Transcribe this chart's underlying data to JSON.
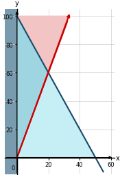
{
  "xlim_data": [
    -8,
    62
  ],
  "ylim_data": [
    -12,
    105
  ],
  "x_axis_max": 60,
  "y_axis_max": 100,
  "xticks": [
    20,
    40,
    60
  ],
  "yticks": [
    20,
    40,
    60,
    80,
    100
  ],
  "line_blue_color": "#1a4a6b",
  "line_red_color": "#cc0000",
  "gray_color": "#7a9bae",
  "pink_color": "#f2c4c4",
  "cyan_color": "#c5eff5",
  "overlap_color": "#9ed5e0",
  "figsize": [
    1.75,
    2.55
  ],
  "dpi": 100,
  "tick_fontsize": 6
}
